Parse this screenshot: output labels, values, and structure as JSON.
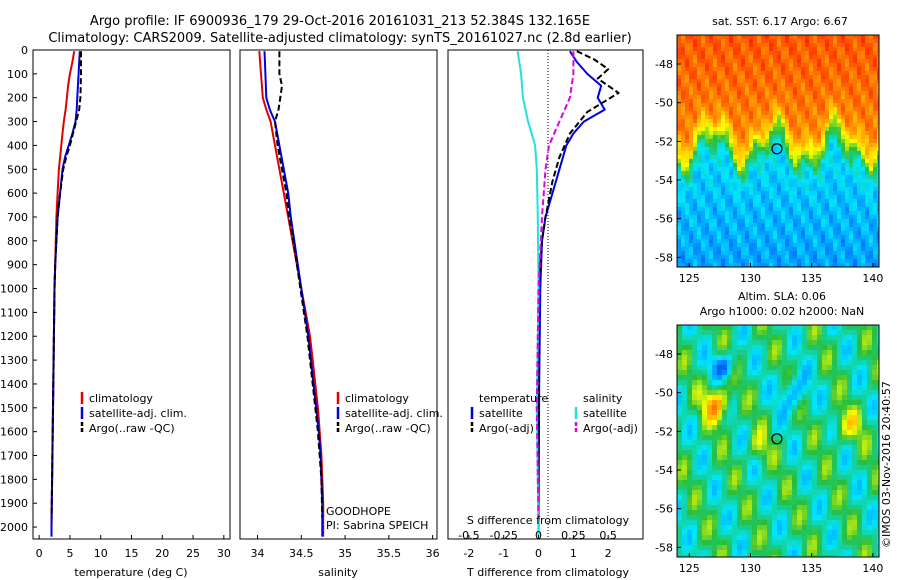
{
  "header": {
    "line1": "Argo profile: IF 6900936_179 29-Oct-2016 20161031_213 52.384S 132.165E",
    "line2": "Climatology: CARS2009. Satellite-adjusted climatology: synTS_20161027.nc (2.8d earlier)"
  },
  "chart_data": [
    {
      "id": "temperature",
      "type": "line",
      "xlabel": "temperature (deg C)",
      "ylabel": "",
      "xlim": [
        -1,
        31
      ],
      "ylim": [
        2050,
        0
      ],
      "xticks": [
        0,
        5,
        10,
        15,
        20,
        25,
        30
      ],
      "yticks": [
        0,
        100,
        200,
        300,
        400,
        500,
        600,
        700,
        800,
        900,
        1000,
        1100,
        1200,
        1300,
        1400,
        1500,
        1600,
        1700,
        1800,
        1900,
        2000
      ],
      "legend": [
        "climatology",
        "satellite-adj. clim.",
        "Argo(..raw -QC)"
      ],
      "series": [
        {
          "name": "climatology",
          "color": "#e00000",
          "style": "solid",
          "points": [
            [
              5.7,
              5
            ],
            [
              5.4,
              50
            ],
            [
              5.0,
              100
            ],
            [
              4.7,
              150
            ],
            [
              4.5,
              200
            ],
            [
              4.3,
              250
            ],
            [
              4.0,
              300
            ],
            [
              3.8,
              350
            ],
            [
              3.6,
              400
            ],
            [
              3.4,
              450
            ],
            [
              3.2,
              500
            ],
            [
              3.0,
              600
            ],
            [
              2.8,
              700
            ],
            [
              2.7,
              800
            ],
            [
              2.6,
              900
            ],
            [
              2.5,
              1000
            ],
            [
              2.4,
              1200
            ],
            [
              2.3,
              1400
            ],
            [
              2.2,
              1600
            ],
            [
              2.1,
              1800
            ],
            [
              2.0,
              2000
            ],
            [
              2.0,
              2040
            ]
          ]
        },
        {
          "name": "satellite-adj. clim.",
          "color": "#0000e0",
          "style": "solid",
          "points": [
            [
              6.6,
              5
            ],
            [
              6.5,
              50
            ],
            [
              6.4,
              100
            ],
            [
              6.3,
              150
            ],
            [
              6.2,
              200
            ],
            [
              6.1,
              250
            ],
            [
              5.9,
              300
            ],
            [
              5.4,
              350
            ],
            [
              4.8,
              400
            ],
            [
              4.2,
              450
            ],
            [
              3.8,
              500
            ],
            [
              3.4,
              600
            ],
            [
              3.0,
              700
            ],
            [
              2.8,
              800
            ],
            [
              2.6,
              900
            ],
            [
              2.5,
              1000
            ],
            [
              2.4,
              1200
            ],
            [
              2.3,
              1400
            ],
            [
              2.2,
              1600
            ],
            [
              2.1,
              1800
            ],
            [
              2.0,
              2000
            ],
            [
              2.0,
              2040
            ]
          ]
        },
        {
          "name": "Argo(..raw -QC)",
          "color": "#000000",
          "style": "dash",
          "points": [
            [
              6.8,
              5
            ],
            [
              6.8,
              100
            ],
            [
              6.7,
              200
            ],
            [
              6.5,
              250
            ],
            [
              6.0,
              300
            ],
            [
              5.5,
              350
            ],
            [
              5.0,
              400
            ],
            [
              4.4,
              450
            ],
            [
              3.9,
              500
            ],
            [
              3.4,
              600
            ],
            [
              3.0,
              700
            ],
            [
              2.8,
              800
            ],
            [
              2.6,
              900
            ],
            [
              2.5,
              1000
            ],
            [
              2.4,
              1200
            ],
            [
              2.3,
              1400
            ],
            [
              2.2,
              1600
            ],
            [
              2.1,
              1800
            ],
            [
              2.0,
              1960
            ]
          ]
        }
      ]
    },
    {
      "id": "salinity",
      "type": "line",
      "xlabel": "salinity",
      "ylabel": "",
      "xlim": [
        33.8,
        36.05
      ],
      "ylim": [
        2050,
        0
      ],
      "xticks": [
        34,
        34.5,
        35,
        35.5,
        36
      ],
      "tick_labels": [
        "34",
        "34.5",
        "35",
        "35.5",
        "36"
      ],
      "legend": [
        "climatology",
        "satellite-adj. clim.",
        "Argo(..raw -QC)"
      ],
      "annotation": [
        "GOODHOPE",
        "PI: Sabrina SPEICH"
      ],
      "series": [
        {
          "name": "climatology",
          "color": "#e00000",
          "style": "solid",
          "points": [
            [
              34.02,
              5
            ],
            [
              34.04,
              100
            ],
            [
              34.06,
              200
            ],
            [
              34.1,
              250
            ],
            [
              34.15,
              300
            ],
            [
              34.2,
              400
            ],
            [
              34.25,
              500
            ],
            [
              34.3,
              600
            ],
            [
              34.35,
              700
            ],
            [
              34.4,
              800
            ],
            [
              34.45,
              900
            ],
            [
              34.5,
              1000
            ],
            [
              34.55,
              1100
            ],
            [
              34.6,
              1200
            ],
            [
              34.63,
              1300
            ],
            [
              34.66,
              1400
            ],
            [
              34.69,
              1500
            ],
            [
              34.71,
              1600
            ],
            [
              34.73,
              1700
            ],
            [
              34.74,
              1800
            ],
            [
              34.75,
              1900
            ],
            [
              34.75,
              2040
            ]
          ]
        },
        {
          "name": "satellite-adj. clim.",
          "color": "#0000e0",
          "style": "solid",
          "points": [
            [
              34.08,
              5
            ],
            [
              34.09,
              100
            ],
            [
              34.1,
              200
            ],
            [
              34.14,
              250
            ],
            [
              34.2,
              300
            ],
            [
              34.25,
              400
            ],
            [
              34.3,
              500
            ],
            [
              34.35,
              600
            ],
            [
              34.38,
              700
            ],
            [
              34.42,
              800
            ],
            [
              34.46,
              900
            ],
            [
              34.5,
              1000
            ],
            [
              34.54,
              1100
            ],
            [
              34.58,
              1200
            ],
            [
              34.61,
              1300
            ],
            [
              34.64,
              1400
            ],
            [
              34.67,
              1500
            ],
            [
              34.7,
              1600
            ],
            [
              34.72,
              1700
            ],
            [
              34.73,
              1800
            ],
            [
              34.74,
              1900
            ],
            [
              34.74,
              2040
            ]
          ]
        },
        {
          "name": "Argo(..raw -QC)",
          "color": "#000000",
          "style": "dash",
          "points": [
            [
              34.25,
              5
            ],
            [
              34.25,
              100
            ],
            [
              34.28,
              150
            ],
            [
              34.26,
              200
            ],
            [
              34.24,
              250
            ],
            [
              34.2,
              300
            ],
            [
              34.23,
              400
            ],
            [
              34.28,
              500
            ],
            [
              34.33,
              600
            ],
            [
              34.36,
              700
            ],
            [
              34.41,
              800
            ],
            [
              34.45,
              900
            ],
            [
              34.49,
              1000
            ],
            [
              34.53,
              1100
            ],
            [
              34.57,
              1200
            ],
            [
              34.6,
              1300
            ],
            [
              34.63,
              1400
            ],
            [
              34.66,
              1500
            ],
            [
              34.69,
              1600
            ],
            [
              34.71,
              1700
            ],
            [
              34.73,
              1800
            ],
            [
              34.74,
              1960
            ]
          ]
        }
      ]
    },
    {
      "id": "difference",
      "type": "line",
      "xlabel": "T difference from climatology",
      "top_label": "S difference from climatology",
      "ylabel": "",
      "xlim": [
        -2.6,
        3.0
      ],
      "ylim": [
        2050,
        0
      ],
      "xticks": [
        -2,
        -1,
        0,
        1,
        2
      ],
      "s_ticks": [
        "-0.5",
        "-0.25",
        "0",
        "0.25",
        "0.5"
      ],
      "legend_headers": [
        "temperature",
        "salinity"
      ],
      "legend": [
        "satellite",
        "Argo(-adj)",
        "satellite",
        "Argo(-adj)"
      ],
      "series": [
        {
          "name": "temperature satellite",
          "color": "#0000e0",
          "style": "solid",
          "points": [
            [
              0.9,
              5
            ],
            [
              1.1,
              50
            ],
            [
              1.4,
              100
            ],
            [
              1.8,
              150
            ],
            [
              1.7,
              200
            ],
            [
              1.9,
              250
            ],
            [
              1.3,
              300
            ],
            [
              1.0,
              350
            ],
            [
              0.8,
              400
            ],
            [
              0.6,
              500
            ],
            [
              0.4,
              600
            ],
            [
              0.2,
              700
            ],
            [
              0.1,
              800
            ],
            [
              0.05,
              1000
            ],
            [
              0.02,
              1400
            ],
            [
              0.0,
              2040
            ]
          ]
        },
        {
          "name": "temperature Argo(-adj)",
          "color": "#000000",
          "style": "dash",
          "points": [
            [
              1.1,
              5
            ],
            [
              1.6,
              40
            ],
            [
              2.0,
              80
            ],
            [
              1.7,
              120
            ],
            [
              2.3,
              180
            ],
            [
              1.4,
              260
            ],
            [
              0.9,
              350
            ],
            [
              0.6,
              450
            ],
            [
              0.4,
              550
            ],
            [
              0.2,
              700
            ],
            [
              0.1,
              800
            ],
            [
              0.0,
              1000
            ],
            [
              0.0,
              1960
            ]
          ]
        },
        {
          "name": "salinity satellite",
          "color": "#20e0e0",
          "style": "solid",
          "points": [
            [
              -0.6,
              5
            ],
            [
              -0.5,
              100
            ],
            [
              -0.45,
              200
            ],
            [
              -0.3,
              300
            ],
            [
              -0.1,
              400
            ],
            [
              -0.05,
              500
            ],
            [
              -0.02,
              700
            ],
            [
              0.0,
              1000
            ],
            [
              -0.05,
              1500
            ],
            [
              0.0,
              2040
            ]
          ]
        },
        {
          "name": "salinity Argo(-adj)",
          "color": "#e000e0",
          "style": "dash",
          "points": [
            [
              1.0,
              5
            ],
            [
              1.0,
              100
            ],
            [
              0.9,
              200
            ],
            [
              0.6,
              300
            ],
            [
              0.3,
              400
            ],
            [
              0.2,
              500
            ],
            [
              0.1,
              700
            ],
            [
              0.0,
              1000
            ],
            [
              -0.05,
              1500
            ],
            [
              0.0,
              1960
            ]
          ]
        }
      ]
    },
    {
      "id": "sst-map",
      "type": "heatmap",
      "title": "sat. SST: 6.17 Argo: 6.67",
      "xlim": [
        124,
        140.5
      ],
      "ylim": [
        -58.5,
        -46.5
      ],
      "xticks": [
        125,
        130,
        135,
        140
      ],
      "yticks": [
        -48,
        -50,
        -52,
        -54,
        -56,
        -58
      ],
      "marker": [
        132.165,
        -52.384
      ]
    },
    {
      "id": "sla-map",
      "type": "heatmap",
      "title": "Altim. SLA: 0.06",
      "subtitle": "Argo h1000: 0.02 h2000: NaN",
      "xlim": [
        124,
        140.5
      ],
      "ylim": [
        -58.5,
        -46.5
      ],
      "xticks": [
        125,
        130,
        135,
        140
      ],
      "yticks": [
        -48,
        -50,
        -52,
        -54,
        -56,
        -58
      ],
      "marker": [
        132.165,
        -52.384
      ]
    }
  ],
  "credit": "©IMOS 03-Nov-2016 20:40:57"
}
